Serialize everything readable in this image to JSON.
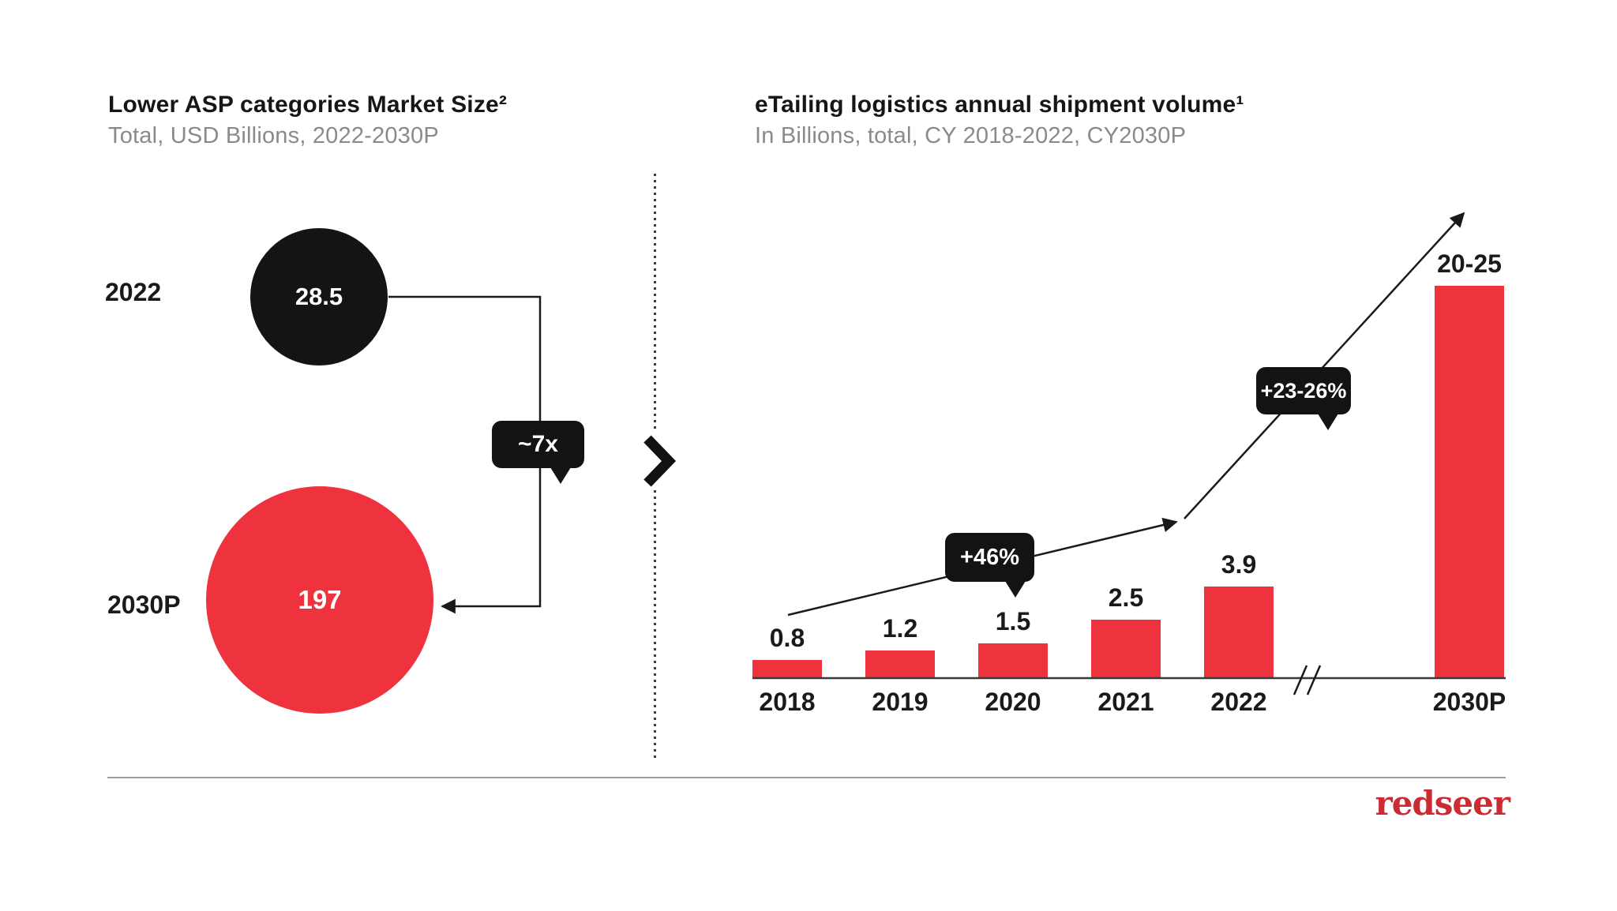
{
  "left_panel": {
    "title": "Lower ASP categories Market Size²",
    "subtitle": "Total, USD Billions, 2022-2030P",
    "bubbles": [
      {
        "label": "2022",
        "value": "28.5",
        "color": "#141414"
      },
      {
        "label": "2030P",
        "value": "197",
        "color": "#EE333F"
      }
    ],
    "multiplier_badge": "~7x"
  },
  "right_panel": {
    "title": "eTailing logistics annual shipment volume¹",
    "subtitle": "In Billions, total, CY 2018-2022, CY2030P",
    "badges": [
      "+46%",
      "+23-26%"
    ]
  },
  "chart_data": [
    {
      "type": "bubble",
      "title": "Lower ASP categories Market Size²",
      "subtitle": "Total, USD Billions, 2022-2030P",
      "categories": [
        "2022",
        "2030P"
      ],
      "values": [
        28.5,
        197
      ],
      "unit": "USD Billions",
      "annotations": [
        "~7x"
      ],
      "colors": [
        "#141414",
        "#EE333F"
      ]
    },
    {
      "type": "bar",
      "title": "eTailing logistics annual shipment volume¹",
      "subtitle": "In Billions, total, CY 2018-2022, CY2030P",
      "categories": [
        "2018",
        "2019",
        "2020",
        "2021",
        "2022",
        "2030P"
      ],
      "values": [
        0.8,
        1.2,
        1.5,
        2.5,
        3.9,
        22.5
      ],
      "value_labels": [
        "0.8",
        "1.2",
        "1.5",
        "2.5",
        "3.9",
        "20-25"
      ],
      "unit": "Billions",
      "bar_color": "#EE333F",
      "annotations": [
        "+46%",
        "+23-26%"
      ],
      "axis_break_before": "2030P",
      "grid": false,
      "legend": false
    }
  ],
  "divider": {
    "chevron": "right"
  },
  "footer": {
    "logo_text": "redseer",
    "logo_color": "#CB2B33"
  }
}
